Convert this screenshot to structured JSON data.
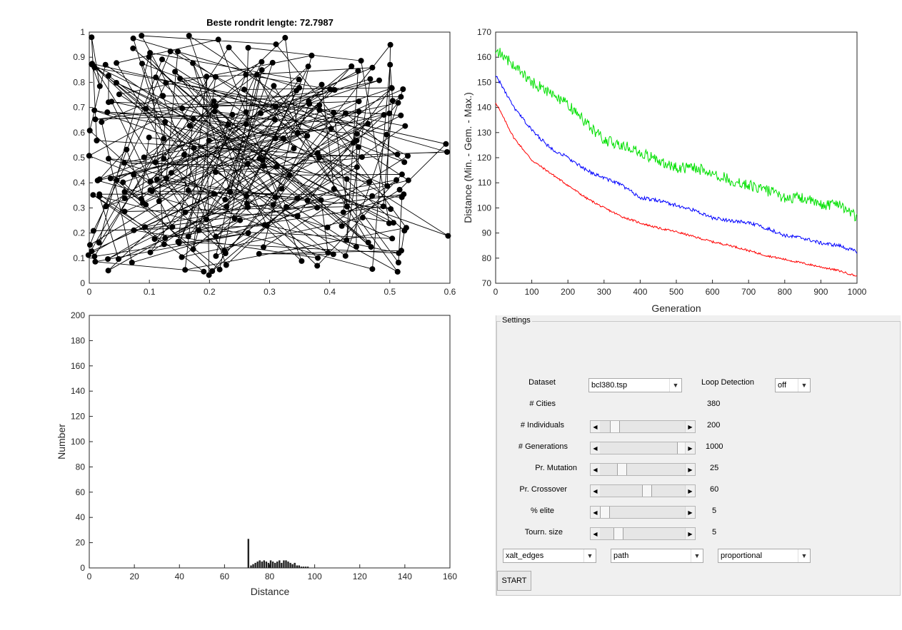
{
  "route_plot": {
    "title": "Beste rondrit lengte: 72.7987",
    "x_ticks": [
      "0",
      "0.1",
      "0.2",
      "0.3",
      "0.4",
      "0.5",
      "0.6"
    ],
    "y_ticks": [
      "0",
      "0.1",
      "0.2",
      "0.3",
      "0.4",
      "0.5",
      "0.6",
      "0.7",
      "0.8",
      "0.9",
      "1"
    ]
  },
  "chart_data": [
    {
      "type": "line",
      "xlabel": "Generation",
      "ylabel": "Distance (Min. - Gem. - Max.)",
      "xlim": [
        0,
        1000
      ],
      "ylim": [
        70,
        170
      ],
      "x_ticks": [
        "0",
        "100",
        "200",
        "300",
        "400",
        "500",
        "600",
        "700",
        "800",
        "900",
        "1000"
      ],
      "y_ticks": [
        "70",
        "80",
        "90",
        "100",
        "110",
        "120",
        "130",
        "140",
        "150",
        "160",
        "170"
      ],
      "x": [
        0,
        50,
        100,
        150,
        200,
        250,
        300,
        350,
        400,
        450,
        500,
        550,
        600,
        650,
        700,
        750,
        800,
        850,
        900,
        950,
        1000
      ],
      "series": [
        {
          "color": "#ff0000",
          "values": [
            142,
            128,
            119,
            114,
            109,
            104,
            100,
            96.5,
            94,
            92,
            90.5,
            88.5,
            86.5,
            85,
            83,
            81,
            79.5,
            78,
            76.5,
            75,
            72.8
          ]
        },
        {
          "color": "#0000ff",
          "values": [
            153,
            140,
            131,
            124,
            120,
            115,
            112,
            109,
            104,
            103,
            101,
            99,
            96,
            95,
            94,
            92,
            89,
            88,
            86,
            85,
            82.5
          ]
        },
        {
          "color": "#00e000",
          "values": [
            163,
            157,
            150,
            146,
            141,
            134,
            127,
            125,
            122,
            119,
            116,
            116,
            114,
            111,
            109,
            107,
            104,
            104,
            101,
            102,
            96
          ]
        }
      ]
    },
    {
      "type": "bar",
      "xlabel": "Distance",
      "ylabel": "Number",
      "xlim": [
        0,
        165
      ],
      "ylim": [
        0,
        200
      ],
      "x_ticks": [
        "0",
        "20",
        "40",
        "60",
        "80",
        "100",
        "120",
        "140",
        "160"
      ],
      "y_ticks": [
        "0",
        "20",
        "40",
        "60",
        "80",
        "100",
        "120",
        "140",
        "160",
        "180",
        "200"
      ],
      "x": [
        72.8,
        74,
        75,
        76,
        77,
        78,
        79,
        80,
        81,
        82,
        83,
        84,
        85,
        86,
        87,
        88,
        89,
        90,
        91,
        92,
        93,
        94,
        95,
        96,
        97,
        98,
        99,
        100
      ],
      "values": [
        23,
        2,
        3,
        4,
        5,
        6,
        5,
        6,
        5,
        4,
        6,
        5,
        4,
        5,
        6,
        4,
        6,
        6,
        5,
        4,
        3,
        4,
        2,
        2,
        1,
        1,
        1,
        1
      ]
    }
  ],
  "settings": {
    "title": "Settings",
    "dataset_label": "Dataset",
    "dataset_value": "bcl380.tsp",
    "loop_label": "Loop Detection",
    "loop_value": "off",
    "cities_label": "# Cities",
    "cities_value": "380",
    "individuals_label": "# Individuals",
    "individuals_value": "200",
    "generations_label": "# Generations",
    "generations_value": "1000",
    "mutation_label": "Pr. Mutation",
    "mutation_value": "25",
    "crossover_label": "Pr. Crossover",
    "crossover_value": "60",
    "elite_label": "% elite",
    "elite_value": "5",
    "tourn_label": "Tourn. size",
    "tourn_value": "5",
    "crossover_op": "xalt_edges",
    "representation": "path",
    "selection": "proportional",
    "start_label": "START"
  }
}
